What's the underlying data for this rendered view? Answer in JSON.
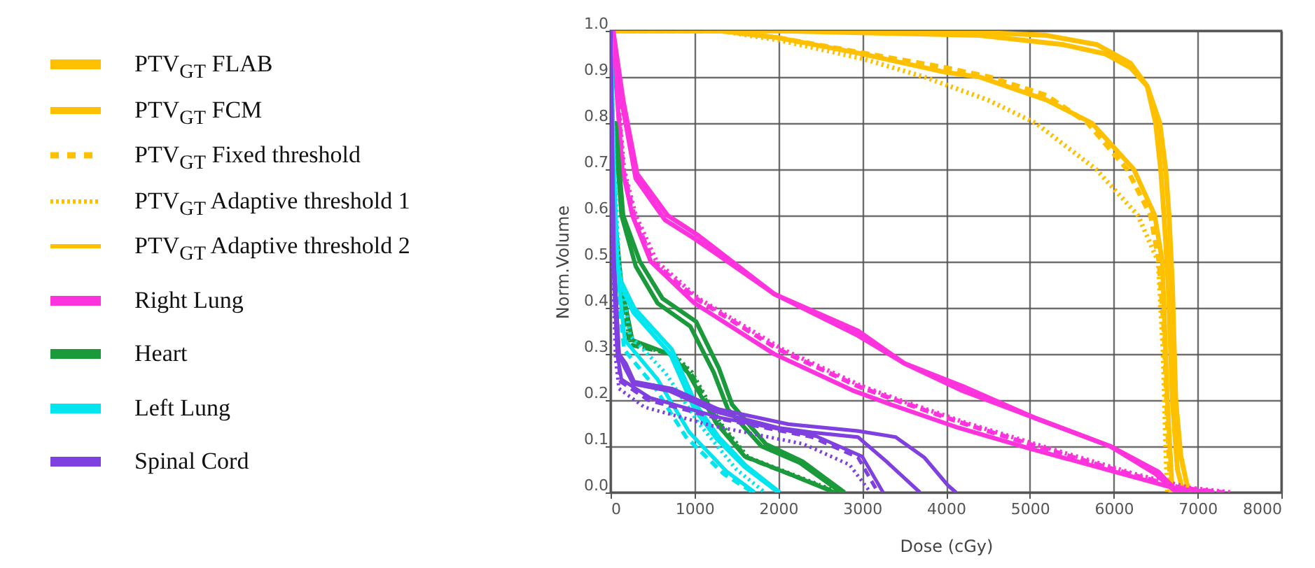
{
  "chart_data": {
    "type": "line",
    "xlabel": "Dose (cGy)",
    "ylabel": "Norm.Volume",
    "xlim": [
      0,
      8000
    ],
    "xticks": [
      0,
      1000,
      2000,
      3000,
      4000,
      5000,
      6000,
      7000,
      8000
    ],
    "ylim": [
      0,
      1
    ],
    "yticks": [
      {
        "value": 0,
        "label": "0.0"
      },
      0.1,
      0.2,
      0.3,
      0.4,
      0.5,
      0.6,
      0.7,
      0.8,
      0.9,
      {
        "value": 1,
        "label": "1.0"
      }
    ],
    "grid": true,
    "legend": "left",
    "series": [
      {
        "name": "PTV$_{GT}$ FLAB",
        "color": "#ffc000",
        "line_style": "solid",
        "x": [
          0,
          2000,
          4000,
          5200,
          5800,
          6200,
          6400,
          6550,
          6620,
          6660,
          6700,
          6740,
          6800,
          6870,
          6910
        ],
        "values": [
          1,
          1,
          1,
          0.99,
          0.97,
          0.93,
          0.88,
          0.8,
          0.7,
          0.6,
          0.45,
          0.2,
          0.08,
          0.02,
          0
        ]
      },
      {
        "name": "PTV$_{GT}$ FCM",
        "color": "#ffc000",
        "line_style": "solid",
        "x": [
          0,
          2000,
          4400,
          5400,
          5900,
          6200,
          6400,
          6500,
          6560,
          6600,
          6650,
          6700,
          6760,
          6830
        ],
        "values": [
          1,
          1,
          0.99,
          0.97,
          0.95,
          0.92,
          0.88,
          0.8,
          0.7,
          0.6,
          0.45,
          0.2,
          0.05,
          0
        ]
      },
      {
        "name": "PTV$_{GT}$ Fixed threshold",
        "color": "#ffc000",
        "line_style": "dashed",
        "x": [
          0,
          1300,
          2000,
          3070,
          4000,
          4520,
          5200,
          5690,
          6160,
          6440,
          6540,
          6600,
          6640,
          6680
        ],
        "values": [
          1,
          1,
          0.985,
          0.95,
          0.92,
          0.9,
          0.86,
          0.8,
          0.7,
          0.6,
          0.5,
          0.35,
          0.15,
          0
        ]
      },
      {
        "name": "PTV$_{GT}$ Adaptive threshold 1",
        "color": "#ffc000",
        "line_style": "dotted",
        "x": [
          0,
          1300,
          2000,
          3000,
          3740,
          4500,
          5070,
          5790,
          6290,
          6530,
          6590,
          6620,
          6640
        ],
        "values": [
          1,
          1,
          0.98,
          0.94,
          0.9,
          0.85,
          0.8,
          0.7,
          0.6,
          0.5,
          0.3,
          0.1,
          0
        ]
      },
      {
        "name": "PTV$_{GT}$ Adaptive threshold 2",
        "color": "#ffc000",
        "line_style": "solid",
        "x": [
          0,
          1300,
          2000,
          3000,
          4000,
          4400,
          5200,
          5740,
          6240,
          6490,
          6580,
          6640,
          6700
        ],
        "values": [
          1,
          1,
          0.985,
          0.95,
          0.91,
          0.9,
          0.85,
          0.8,
          0.7,
          0.6,
          0.5,
          0.2,
          0
        ]
      },
      {
        "name": "Right Lung",
        "color": "#ff33dd",
        "line_style": "solid",
        "x": [
          0,
          30,
          150,
          317,
          680,
          1020,
          1950,
          2950,
          3500,
          4200,
          5080,
          5960,
          6530,
          6740,
          6900
        ],
        "values": [
          1,
          1,
          0.85,
          0.69,
          0.6,
          0.56,
          0.43,
          0.35,
          0.28,
          0.23,
          0.16,
          0.1,
          0.045,
          0.005,
          0
        ]
      },
      {
        "color": "#ff33dd",
        "line_style": "solid",
        "x": [
          0,
          30,
          140,
          300,
          650,
          1000,
          1950,
          2950,
          3500,
          4200,
          5080,
          5960,
          6500,
          6720,
          6880
        ],
        "values": [
          1,
          1,
          0.84,
          0.68,
          0.59,
          0.55,
          0.43,
          0.34,
          0.28,
          0.22,
          0.16,
          0.1,
          0.04,
          0.005,
          0
        ]
      },
      {
        "color": "#ff33dd",
        "line_style": "dashed",
        "x": [
          0,
          20,
          150,
          280,
          500,
          1020,
          2000,
          2950,
          3400,
          4200,
          5080,
          6190,
          6800,
          7300
        ],
        "values": [
          1,
          1,
          0.7,
          0.6,
          0.5,
          0.42,
          0.31,
          0.23,
          0.2,
          0.15,
          0.1,
          0.04,
          0.01,
          0
        ]
      },
      {
        "color": "#ff33dd",
        "line_style": "dotted",
        "x": [
          0,
          20,
          160,
          300,
          550,
          1050,
          2050,
          3000,
          3450,
          4250,
          5150,
          6250,
          6900,
          7400
        ],
        "values": [
          1,
          1,
          0.7,
          0.6,
          0.5,
          0.42,
          0.31,
          0.23,
          0.2,
          0.15,
          0.1,
          0.04,
          0.01,
          0
        ]
      },
      {
        "color": "#ff33dd",
        "line_style": "solid",
        "x": [
          0,
          20,
          140,
          260,
          480,
          1000,
          1950,
          2900,
          3350,
          4150,
          5000,
          6150,
          6750,
          7200
        ],
        "values": [
          1,
          1,
          0.7,
          0.6,
          0.5,
          0.41,
          0.3,
          0.22,
          0.19,
          0.14,
          0.095,
          0.038,
          0.008,
          0
        ]
      },
      {
        "name": "Heart",
        "color": "#1a9a3a",
        "line_style": "solid",
        "x": [
          0,
          60,
          150,
          350,
          620,
          1020,
          1290,
          1450,
          1850,
          2290,
          2790
        ],
        "values": [
          0.8,
          0.8,
          0.6,
          0.5,
          0.42,
          0.37,
          0.27,
          0.19,
          0.105,
          0.067,
          0
        ]
      },
      {
        "color": "#1a9a3a",
        "line_style": "solid",
        "x": [
          0,
          50,
          130,
          300,
          560,
          950,
          1230,
          1400,
          1800,
          2250,
          2750
        ],
        "values": [
          0.8,
          0.8,
          0.6,
          0.49,
          0.41,
          0.36,
          0.26,
          0.18,
          0.1,
          0.065,
          0
        ]
      },
      {
        "color": "#1a9a3a",
        "line_style": "dashed",
        "x": [
          0,
          40,
          100,
          230,
          730,
          950,
          1290,
          1620,
          2190,
          2690
        ],
        "values": [
          0.8,
          0.6,
          0.45,
          0.32,
          0.3,
          0.26,
          0.15,
          0.076,
          0.036,
          0
        ]
      },
      {
        "color": "#1a9a3a",
        "line_style": "dotted",
        "x": [
          0,
          40,
          110,
          240,
          750,
          970,
          1310,
          1640,
          2210,
          2720
        ],
        "values": [
          0.8,
          0.6,
          0.45,
          0.32,
          0.3,
          0.26,
          0.15,
          0.076,
          0.036,
          0
        ]
      },
      {
        "color": "#1a9a3a",
        "line_style": "solid",
        "x": [
          0,
          50,
          130,
          260,
          700,
          920,
          1260,
          1600,
          2170,
          2670
        ],
        "values": [
          0.8,
          0.6,
          0.45,
          0.33,
          0.3,
          0.26,
          0.15,
          0.078,
          0.037,
          0
        ]
      },
      {
        "name": "Left Lung",
        "color": "#00e5ee",
        "line_style": "solid",
        "x": [
          0,
          40,
          80,
          120,
          280,
          730,
          1020,
          1290,
          1620,
          2020
        ],
        "values": [
          1,
          0.7,
          0.5,
          0.46,
          0.4,
          0.31,
          0.19,
          0.12,
          0.057,
          0
        ]
      },
      {
        "color": "#00e5ee",
        "line_style": "solid",
        "x": [
          0,
          40,
          80,
          120,
          270,
          710,
          1000,
          1270,
          1600,
          2000
        ],
        "values": [
          1,
          0.7,
          0.5,
          0.45,
          0.39,
          0.3,
          0.18,
          0.115,
          0.055,
          0
        ]
      },
      {
        "color": "#00e5ee",
        "line_style": "dashed",
        "x": [
          0,
          25,
          60,
          160,
          520,
          900,
          1350,
          1700
        ],
        "values": [
          1,
          0.7,
          0.5,
          0.31,
          0.23,
          0.12,
          0.04,
          0
        ]
      },
      {
        "color": "#00e5ee",
        "line_style": "dotted",
        "x": [
          0,
          45,
          100,
          230,
          650,
          1050,
          1500,
          1840
        ],
        "values": [
          1,
          0.7,
          0.5,
          0.34,
          0.26,
          0.15,
          0.05,
          0
        ]
      },
      {
        "color": "#00e5ee",
        "line_style": "solid",
        "x": [
          0,
          30,
          70,
          170,
          560,
          940,
          1380,
          1720
        ],
        "values": [
          1,
          0.7,
          0.5,
          0.33,
          0.245,
          0.13,
          0.046,
          0
        ]
      },
      {
        "name": "Spinal Cord",
        "color": "#8040e0",
        "line_style": "solid",
        "x": [
          0,
          40,
          100,
          180,
          280,
          730,
          1290,
          2120,
          2950,
          3400,
          3740,
          4020,
          4120
        ],
        "values": [
          1,
          0.5,
          0.3,
          0.28,
          0.24,
          0.225,
          0.18,
          0.148,
          0.133,
          0.12,
          0.076,
          0.016,
          0
        ]
      },
      {
        "color": "#8040e0",
        "line_style": "solid",
        "x": [
          0,
          40,
          100,
          170,
          270,
          700,
          1250,
          2000,
          2400,
          2950,
          3290,
          3690
        ],
        "values": [
          1,
          0.5,
          0.3,
          0.27,
          0.235,
          0.22,
          0.175,
          0.14,
          0.13,
          0.12,
          0.067,
          0
        ]
      },
      {
        "color": "#8040e0",
        "line_style": "dashed",
        "x": [
          0,
          30,
          80,
          120,
          450,
          1290,
          2400,
          2950,
          3190
        ],
        "values": [
          1,
          0.5,
          0.3,
          0.24,
          0.2,
          0.16,
          0.12,
          0.076,
          0
        ]
      },
      {
        "color": "#8040e0",
        "line_style": "dotted",
        "x": [
          0,
          20,
          60,
          100,
          400,
          1200,
          2300,
          2850,
          3100
        ],
        "values": [
          1,
          0.5,
          0.29,
          0.225,
          0.185,
          0.145,
          0.105,
          0.06,
          0
        ]
      },
      {
        "color": "#8040e0",
        "line_style": "solid",
        "x": [
          0,
          30,
          80,
          130,
          470,
          1310,
          2450,
          3000,
          3250
        ],
        "values": [
          1,
          0.5,
          0.3,
          0.245,
          0.205,
          0.162,
          0.122,
          0.078,
          0
        ]
      }
    ]
  }
}
